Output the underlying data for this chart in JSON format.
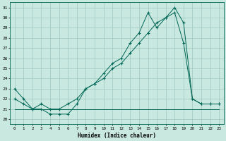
{
  "xlabel": "Humidex (Indice chaleur)",
  "xlim": [
    -0.5,
    23.5
  ],
  "ylim": [
    19.5,
    31.5
  ],
  "yticks": [
    20,
    21,
    22,
    23,
    24,
    25,
    26,
    27,
    28,
    29,
    30,
    31
  ],
  "xticks": [
    0,
    1,
    2,
    3,
    4,
    5,
    6,
    7,
    8,
    9,
    10,
    11,
    12,
    13,
    14,
    15,
    16,
    17,
    18,
    19,
    20,
    21,
    22,
    23
  ],
  "bg_color": "#c8e8e0",
  "line_color": "#006655",
  "grid_color": "#a0c8c0",
  "series1_x": [
    0,
    1,
    2,
    3,
    4,
    5,
    6,
    7,
    8,
    9,
    10,
    11,
    12,
    13,
    14,
    15,
    16,
    17,
    18,
    19,
    20,
    21,
    22,
    23
  ],
  "series1_y": [
    23.0,
    22.0,
    21.0,
    21.0,
    20.5,
    20.5,
    20.5,
    21.5,
    23.0,
    23.5,
    24.5,
    25.5,
    26.0,
    27.5,
    28.5,
    30.5,
    29.0,
    30.0,
    31.0,
    29.5,
    22.0,
    21.5,
    21.5,
    21.5
  ],
  "series2_x": [
    0,
    1,
    2,
    3,
    4,
    5,
    6,
    7,
    8,
    9,
    10,
    11,
    12,
    13,
    14,
    15,
    16,
    17,
    18,
    19,
    20,
    21,
    22,
    23
  ],
  "series2_y": [
    22.0,
    21.5,
    21.0,
    21.5,
    21.0,
    21.0,
    21.5,
    22.0,
    23.0,
    23.5,
    24.0,
    25.0,
    25.5,
    26.5,
    27.5,
    28.5,
    29.5,
    30.0,
    30.5,
    27.5,
    22.0,
    21.5,
    21.5,
    21.5
  ],
  "series3_x": [
    0,
    1,
    2,
    3,
    4,
    5,
    6,
    7,
    8,
    9,
    10,
    11,
    12,
    13,
    14,
    15,
    16,
    17,
    18,
    19,
    20,
    21,
    22,
    23
  ],
  "series3_y": [
    21.0,
    21.0,
    21.0,
    21.0,
    21.0,
    21.0,
    21.0,
    21.0,
    21.0,
    21.0,
    21.0,
    21.0,
    21.0,
    21.0,
    21.0,
    21.0,
    21.0,
    21.0,
    21.0,
    21.0,
    21.0,
    21.0,
    21.0,
    21.0
  ]
}
